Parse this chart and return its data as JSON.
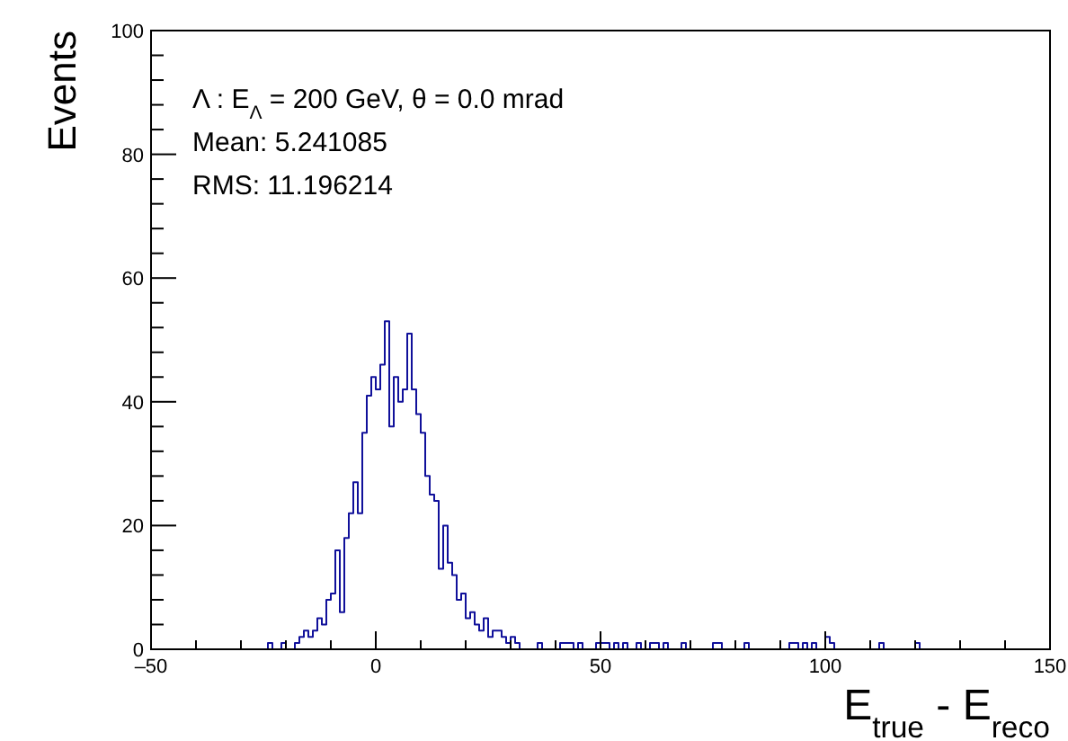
{
  "chart_data": {
    "type": "histogram",
    "xlabel": "E$_{true}$ - E$_{reco}$",
    "ylabel": "Events",
    "annotations": [
      "Λ : E$_{Λ}$ = 200 GeV, θ = 0.0 mrad",
      "Mean: 5.241085",
      "RMS: 11.196214"
    ],
    "color": "#10109a",
    "bins": [
      -50,
      -49,
      -48,
      -47,
      -46,
      -45,
      -44,
      -43,
      -42,
      -41,
      -40,
      -39,
      -38,
      -37,
      -36,
      -35,
      -34,
      -33,
      -32,
      -31,
      -30,
      -29,
      -28,
      -27,
      -26,
      -25,
      -24,
      -23,
      -22,
      -21,
      -20,
      -19,
      -18,
      -17,
      -16,
      -15,
      -14,
      -13,
      -12,
      -11,
      -10,
      -9,
      -8,
      -7,
      -6,
      -5,
      -4,
      -3,
      -2,
      -1,
      0,
      1,
      2,
      3,
      4,
      5,
      6,
      7,
      8,
      9,
      10,
      11,
      12,
      13,
      14,
      15,
      16,
      17,
      18,
      19,
      20,
      21,
      22,
      23,
      24,
      25,
      26,
      27,
      28,
      29,
      30,
      31,
      32,
      33,
      34,
      35,
      36,
      37,
      38,
      39,
      40,
      41,
      42,
      43,
      44,
      45,
      46,
      47,
      48,
      49,
      50,
      51,
      52,
      53,
      54,
      55,
      56,
      57,
      58,
      59,
      60,
      61,
      62,
      63,
      64,
      65,
      66,
      67,
      68,
      69,
      70,
      71,
      72,
      73,
      74,
      75,
      76,
      77,
      78,
      79,
      80,
      81,
      82,
      83,
      84,
      85,
      86,
      87,
      88,
      89,
      90,
      91,
      92,
      93,
      94,
      95,
      96,
      97,
      98,
      99,
      100,
      101,
      102,
      103,
      104,
      105,
      106,
      107,
      108,
      109,
      110,
      111,
      112,
      113,
      114,
      115,
      116,
      117,
      118,
      119,
      120,
      121,
      122,
      123,
      124,
      125,
      126,
      127,
      128,
      129,
      130,
      131,
      132,
      133,
      134,
      135,
      136,
      137,
      138,
      139,
      140,
      141,
      142,
      143,
      144,
      145,
      146,
      147,
      148,
      149,
      150
    ],
    "values": [
      0,
      0,
      0,
      0,
      0,
      0,
      0,
      0,
      0,
      0,
      0,
      0,
      0,
      0,
      0,
      0,
      0,
      0,
      0,
      0,
      0,
      0,
      0,
      0,
      0,
      0,
      1,
      0,
      0,
      1,
      0,
      0,
      1,
      2,
      3,
      2,
      3,
      5,
      4,
      8,
      9,
      16,
      6,
      18,
      22,
      27,
      22,
      35,
      41,
      44,
      42,
      46,
      53,
      36,
      44,
      40,
      42,
      51,
      42,
      38,
      35,
      28,
      25,
      24,
      13,
      20,
      14,
      12,
      8,
      9,
      5,
      6,
      4,
      3,
      5,
      2,
      3,
      3,
      2,
      1,
      2,
      1,
      0,
      0,
      0,
      0,
      1,
      0,
      0,
      0,
      0,
      1,
      1,
      1,
      0,
      1,
      0,
      0,
      0,
      1,
      1,
      1,
      0,
      1,
      0,
      1,
      0,
      0,
      1,
      0,
      0,
      1,
      1,
      0,
      1,
      0,
      0,
      0,
      1,
      0,
      0,
      0,
      0,
      0,
      0,
      1,
      1,
      0,
      0,
      0,
      0,
      0,
      1,
      0,
      0,
      0,
      0,
      0,
      0,
      0,
      0,
      0,
      1,
      1,
      0,
      1,
      0,
      1,
      0,
      0,
      2,
      1,
      0,
      0,
      0,
      0,
      0,
      0,
      0,
      0,
      0,
      0,
      1,
      0,
      0,
      0,
      0,
      0,
      0,
      0,
      1,
      0,
      0,
      0,
      0,
      0,
      0,
      0,
      0,
      0,
      0,
      0,
      0,
      0,
      0,
      0,
      0,
      0,
      0,
      0,
      0,
      0,
      0,
      0,
      0,
      0,
      0,
      0,
      0,
      0
    ],
    "xlim": [
      -50,
      150
    ],
    "xticks": [
      {
        "value": -50,
        "label": "–50"
      },
      {
        "value": -40,
        "label": null
      },
      {
        "value": -30,
        "label": null
      },
      {
        "value": -20,
        "label": null
      },
      {
        "value": -10,
        "label": null
      },
      0,
      {
        "value": 10,
        "label": null
      },
      {
        "value": 20,
        "label": null
      },
      {
        "value": 30,
        "label": null
      },
      {
        "value": 40,
        "label": null
      },
      50,
      {
        "value": 60,
        "label": null
      },
      {
        "value": 70,
        "label": null
      },
      {
        "value": 80,
        "label": null
      },
      {
        "value": 90,
        "label": null
      },
      100,
      {
        "value": 110,
        "label": null
      },
      {
        "value": 120,
        "label": null
      },
      {
        "value": 130,
        "label": null
      },
      {
        "value": 140,
        "label": null
      },
      150
    ],
    "ylim": [
      0,
      100
    ],
    "yticks": [
      0,
      {
        "value": 4,
        "label": null
      },
      {
        "value": 8,
        "label": null
      },
      {
        "value": 12,
        "label": null
      },
      {
        "value": 16,
        "label": null
      },
      20,
      {
        "value": 24,
        "label": null
      },
      {
        "value": 28,
        "label": null
      },
      {
        "value": 32,
        "label": null
      },
      {
        "value": 36,
        "label": null
      },
      40,
      {
        "value": 44,
        "label": null
      },
      {
        "value": 48,
        "label": null
      },
      {
        "value": 52,
        "label": null
      },
      {
        "value": 56,
        "label": null
      },
      60,
      {
        "value": 64,
        "label": null
      },
      {
        "value": 68,
        "label": null
      },
      {
        "value": 72,
        "label": null
      },
      {
        "value": 76,
        "label": null
      },
      80,
      {
        "value": 84,
        "label": null
      },
      {
        "value": 88,
        "label": null
      },
      {
        "value": 92,
        "label": null
      },
      {
        "value": 96,
        "label": null
      },
      100
    ],
    "grid": false
  }
}
